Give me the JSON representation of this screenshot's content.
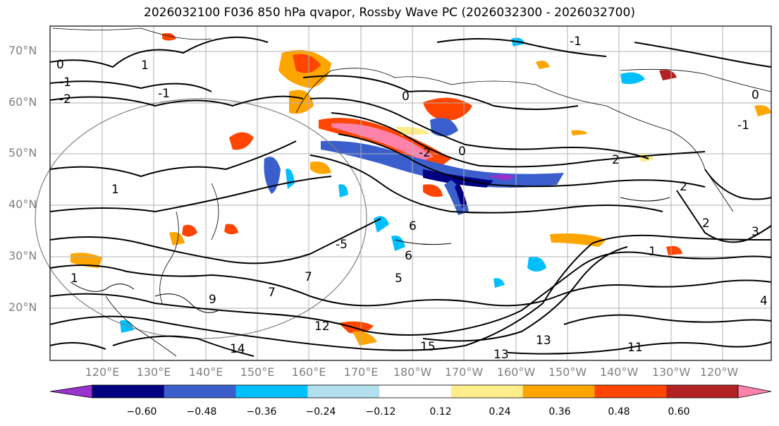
{
  "title": "2026032100 F036 850 hPa qvapor, Rossby Wave PC (2026032300 - 2026032700)",
  "map": {
    "lat_labels": [
      "70°N",
      "60°N",
      "50°N",
      "40°N",
      "30°N",
      "20°N"
    ],
    "lon_labels": [
      "120°E",
      "130°E",
      "140°E",
      "150°E",
      "160°E",
      "170°E",
      "180°W",
      "170°W",
      "160°W",
      "150°W",
      "140°W",
      "130°W",
      "120°W"
    ],
    "contour_labels": [
      "0",
      "-1",
      "-2",
      "-1",
      "1",
      "0",
      "-2",
      "0",
      "-1",
      "2",
      "-5",
      "6",
      "6",
      "5",
      "7",
      "7",
      "9",
      "12",
      "13",
      "14",
      "15",
      "13",
      "11",
      "1",
      "-1",
      "0",
      "2",
      "2",
      "1",
      "4",
      "3",
      "1"
    ]
  },
  "colorbar": {
    "ticks": [
      "−0.60",
      "−0.48",
      "−0.36",
      "−0.24",
      "−0.12",
      "0.12",
      "0.24",
      "0.36",
      "0.48",
      "0.60"
    ],
    "colors": [
      "#9a32cd",
      "#000080",
      "#3a5fcd",
      "#00bfff",
      "#b2dfee",
      "#ffffff",
      "#ffec8b",
      "#ffa500",
      "#ff4500",
      "#b22222",
      "#ff82ab"
    ],
    "extend": "both"
  }
}
